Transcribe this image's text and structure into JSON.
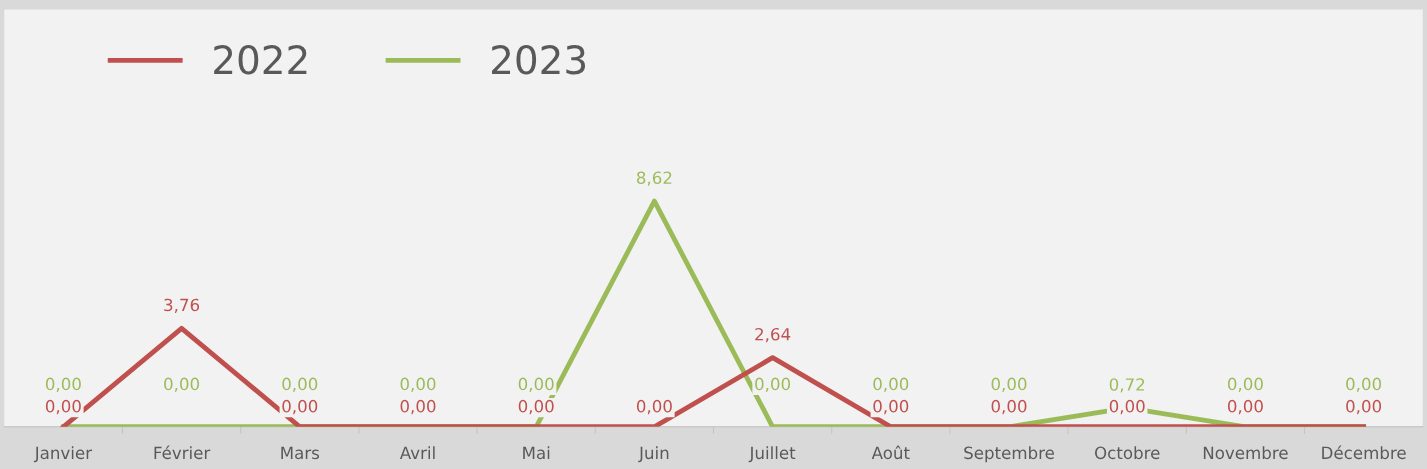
{
  "chart_data": {
    "type": "line",
    "categories": [
      "Janvier",
      "Février",
      "Mars",
      "Avril",
      "Mai",
      "Juin",
      "Juillet",
      "Août",
      "Septembre",
      "Octobre",
      "Novembre",
      "Décembre"
    ],
    "series": [
      {
        "name": "2022",
        "color": "#c0504d",
        "values": [
          0,
          3.76,
          0,
          0,
          0,
          0,
          2.64,
          0,
          0,
          0,
          0,
          0
        ],
        "value_labels": [
          "0,00",
          "3,76",
          "0,00",
          "0,00",
          "0,00",
          "0,00",
          "2,64",
          "0,00",
          "0,00",
          "0,00",
          "0,00",
          "0,00"
        ]
      },
      {
        "name": "2023",
        "color": "#9bbb59",
        "values": [
          0,
          0,
          0,
          0,
          0,
          8.62,
          0,
          0,
          0,
          0.72,
          0,
          0
        ],
        "value_labels": [
          "0,00",
          "0,00",
          "0,00",
          "0,00",
          "0,00",
          "8,62",
          "0,00",
          "0,00",
          "0,00",
          "0,72",
          "0,00",
          "0,00"
        ]
      }
    ],
    "legend": "top left",
    "grid": false,
    "marker": "none",
    "line_style": "solid"
  }
}
